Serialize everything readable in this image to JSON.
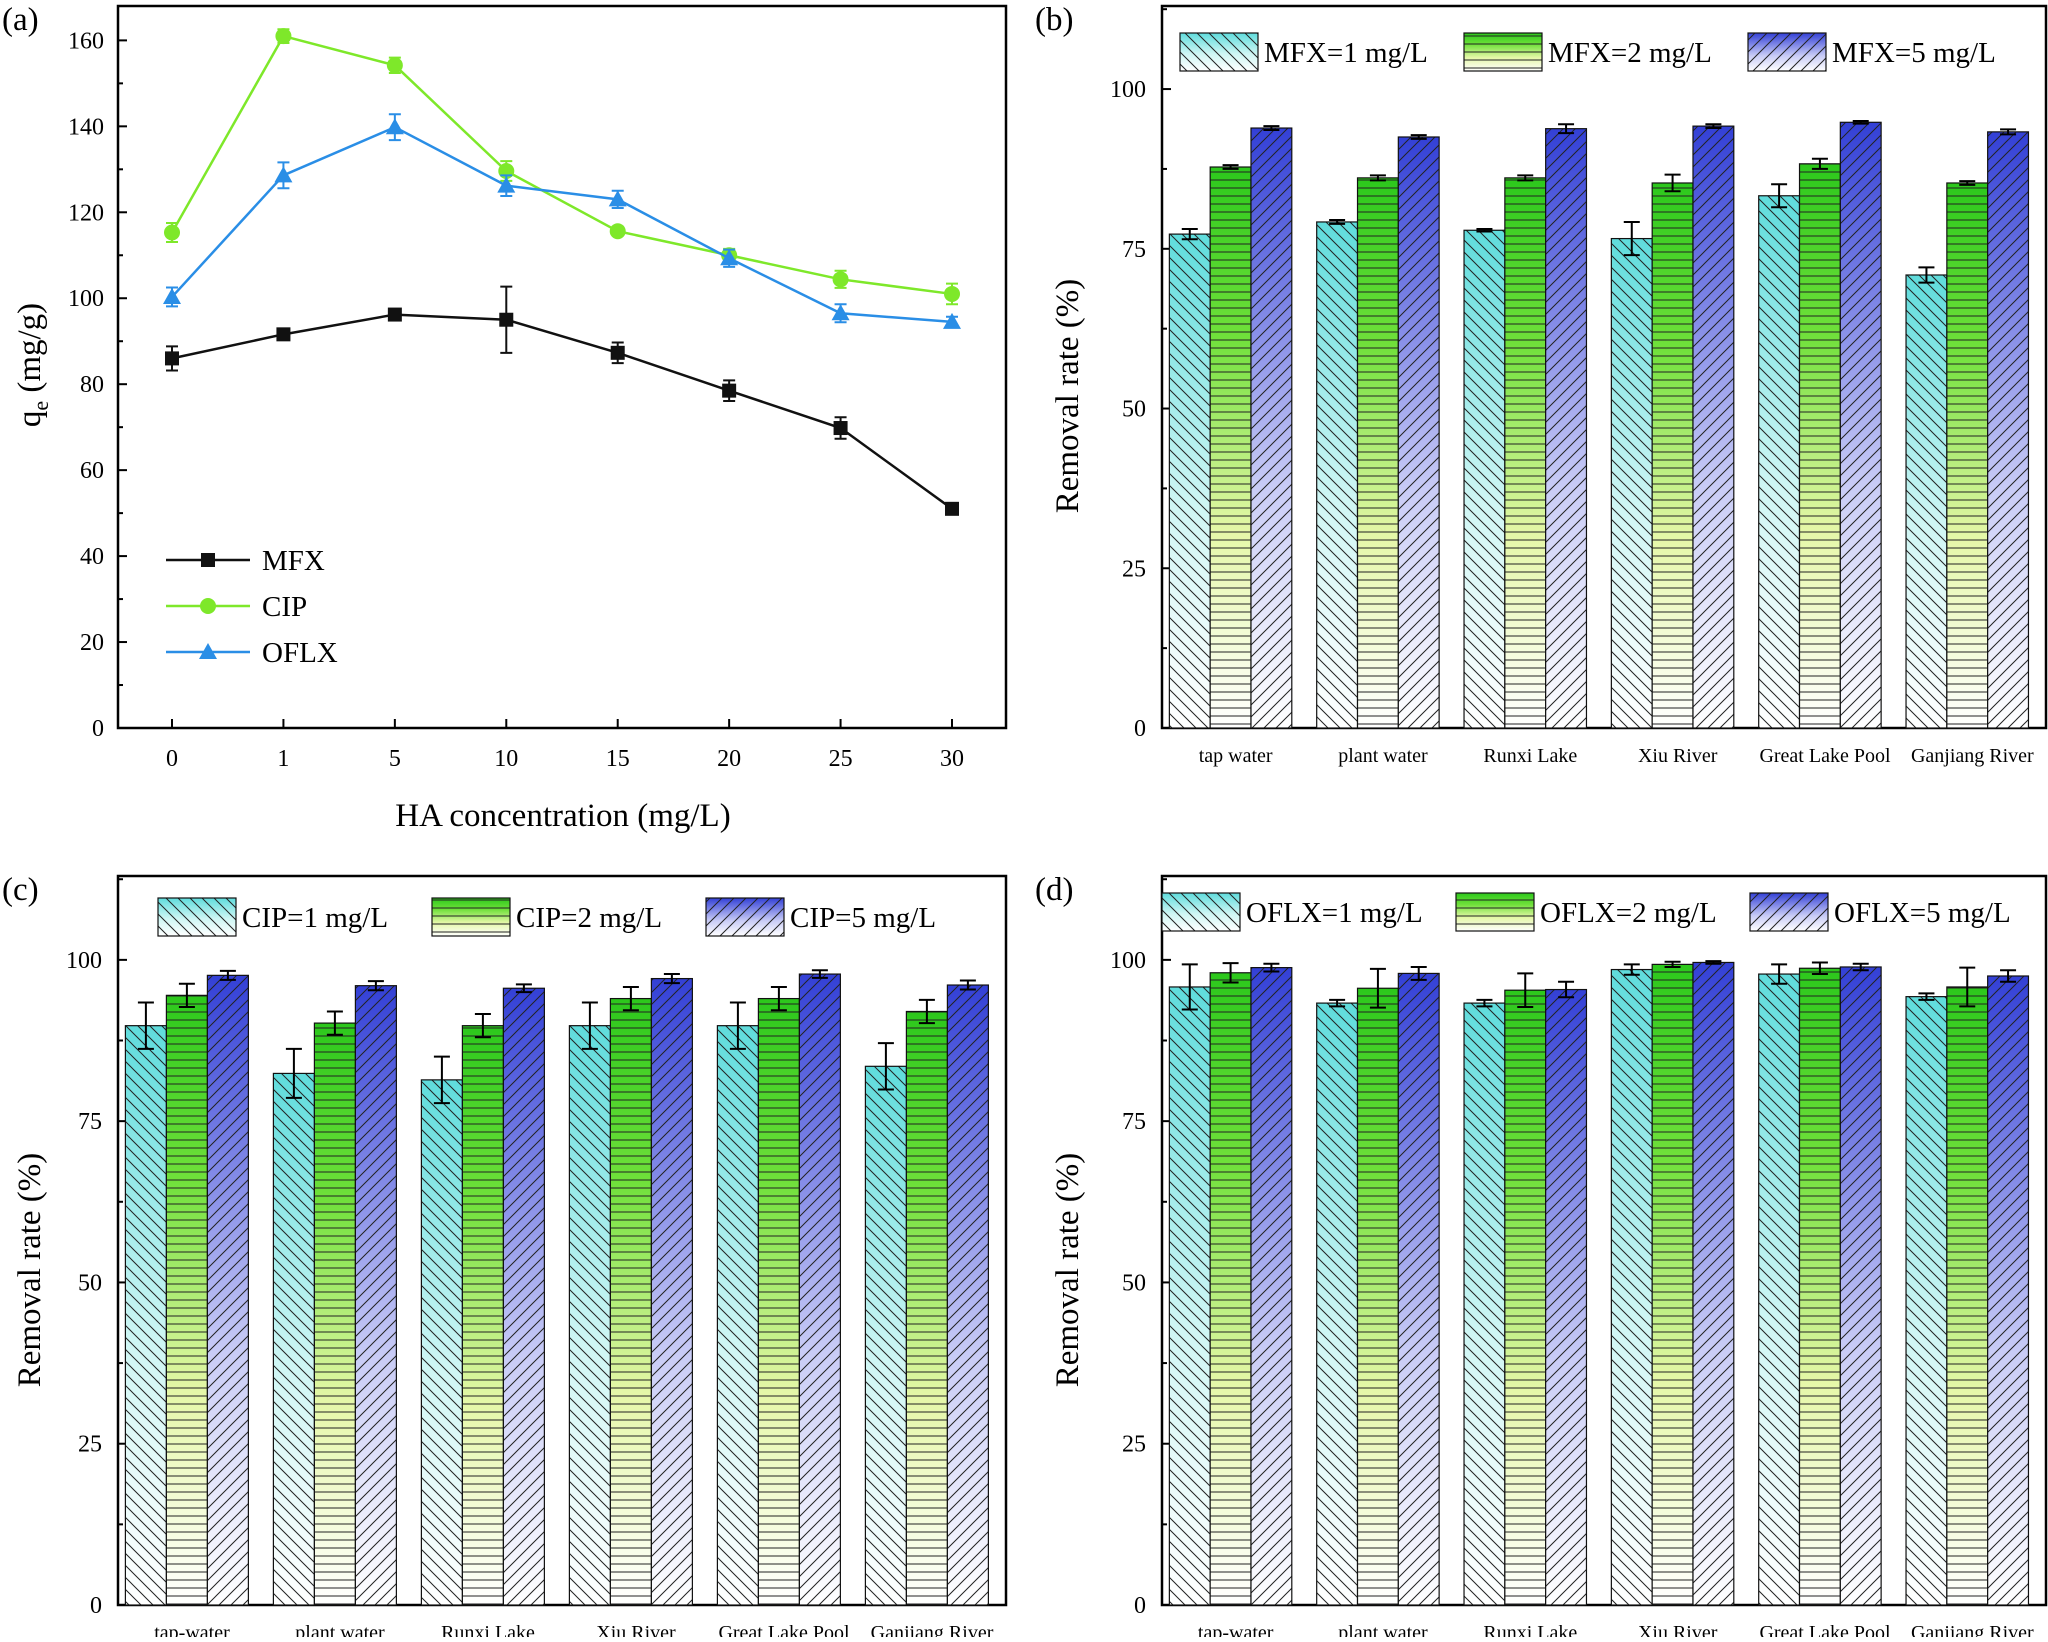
{
  "figure_colors": {
    "mfx_line": "#111111",
    "cip_line": "#7ee82a",
    "oflx_line": "#2a8ee6",
    "bar_low": "#7fe6e6",
    "bar_mid": "#3bd21c",
    "bar_high": "#3d46d8"
  },
  "chart_data": [
    {
      "id": "a",
      "panel_label": "(a)",
      "type": "line",
      "xlabel": "HA concentration (mg/L)",
      "ylabel_main": "q",
      "ylabel_sub": "e",
      "ylabel_unit": " (mg/g)",
      "categories": [
        "0",
        "1",
        "5",
        "10",
        "15",
        "20",
        "25",
        "30"
      ],
      "ylim": [
        0,
        168
      ],
      "yticks": [
        0,
        20,
        40,
        60,
        80,
        100,
        120,
        140,
        160
      ],
      "legend_position": "bottom-left",
      "series": [
        {
          "name": "MFX",
          "marker": "square",
          "color": "#111111",
          "values": [
            86,
            91.6,
            96.2,
            95,
            87.3,
            78.5,
            69.8,
            51
          ],
          "errors": [
            2.8,
            1.3,
            1.3,
            7.7,
            2.4,
            2.4,
            2.5,
            1.1
          ]
        },
        {
          "name": "CIP",
          "marker": "circle",
          "color": "#7ee82a",
          "values": [
            115.3,
            161,
            154.2,
            129.6,
            115.6,
            110,
            104.4,
            101
          ],
          "errors": [
            2.2,
            1.6,
            1.8,
            2.3,
            1.0,
            1.5,
            2.0,
            2.4
          ]
        },
        {
          "name": "OFLX",
          "marker": "triangle",
          "color": "#2a8ee6",
          "values": [
            100.3,
            128.6,
            139.8,
            126.2,
            123,
            109.3,
            96.5,
            94.5
          ],
          "errors": [
            2.2,
            3.0,
            3.0,
            2.4,
            2.0,
            2.0,
            2.1,
            1.2
          ]
        }
      ]
    },
    {
      "id": "b",
      "panel_label": "(b)",
      "type": "bar",
      "ylabel": "Removal rate (%)",
      "ylim": [
        0,
        113
      ],
      "yticks": [
        0,
        25,
        50,
        75,
        100
      ],
      "categories": [
        "tap water",
        "plant water",
        "Runxi Lake",
        "Xiu River",
        "Great Lake Pool",
        "Ganjiang River"
      ],
      "legend_position": "top",
      "series": [
        {
          "name": "MFX=1 mg/L",
          "values": [
            77.3,
            79.2,
            77.9,
            76.6,
            83.3,
            70.9
          ],
          "errors": [
            0.8,
            0.3,
            0.2,
            2.6,
            1.8,
            1.2
          ]
        },
        {
          "name": "MFX=2 mg/L",
          "values": [
            87.8,
            86.1,
            86.1,
            85.3,
            88.3,
            85.3
          ],
          "errors": [
            0.3,
            0.4,
            0.4,
            1.3,
            0.8,
            0.3
          ]
        },
        {
          "name": "MFX=5 mg/L",
          "values": [
            93.9,
            92.5,
            93.8,
            94.2,
            94.8,
            93.3
          ],
          "errors": [
            0.3,
            0.3,
            0.7,
            0.3,
            0.2,
            0.4
          ]
        }
      ]
    },
    {
      "id": "c",
      "panel_label": "(c)",
      "type": "bar",
      "ylabel": "Removal rate (%)",
      "ylim": [
        0,
        113
      ],
      "yticks": [
        0,
        25,
        50,
        75,
        100
      ],
      "categories": [
        "tap-water",
        "plant water",
        "Runxi Lake",
        "Xiu River",
        "Great Lake Pool",
        "Ganjiang River"
      ],
      "legend_position": "top",
      "series": [
        {
          "name": "CIP=1 mg/L",
          "values": [
            89.8,
            82.4,
            81.4,
            89.8,
            89.8,
            83.5
          ],
          "errors": [
            3.6,
            3.8,
            3.6,
            3.6,
            3.6,
            3.6
          ]
        },
        {
          "name": "CIP=2 mg/L",
          "values": [
            94.5,
            90.2,
            89.8,
            94,
            94,
            92
          ],
          "errors": [
            1.8,
            1.8,
            1.8,
            1.8,
            1.8,
            1.8
          ]
        },
        {
          "name": "CIP=5 mg/L",
          "values": [
            97.6,
            96,
            95.6,
            97.1,
            97.8,
            96.1
          ],
          "errors": [
            0.7,
            0.7,
            0.6,
            0.7,
            0.6,
            0.7
          ]
        }
      ]
    },
    {
      "id": "d",
      "panel_label": "(d)",
      "type": "bar",
      "ylabel": "Removal rate (%)",
      "ylim": [
        0,
        113
      ],
      "yticks": [
        0,
        25,
        50,
        75,
        100
      ],
      "categories": [
        "tap-water",
        "plant water",
        "Runxi Lake",
        "Xiu River",
        "Great Lake Pool",
        "Ganjiang River"
      ],
      "legend_position": "top",
      "series": [
        {
          "name": "OFLX=1 mg/L",
          "values": [
            95.8,
            93.3,
            93.3,
            98.5,
            97.8,
            94.3
          ],
          "errors": [
            3.5,
            0.5,
            0.5,
            0.8,
            1.5,
            0.5
          ]
        },
        {
          "name": "OFLX=2 mg/L",
          "values": [
            98,
            95.6,
            95.3,
            99.3,
            98.7,
            95.8
          ],
          "errors": [
            1.5,
            3.0,
            2.6,
            0.4,
            0.9,
            3.0
          ]
        },
        {
          "name": "OFLX=5 mg/L",
          "values": [
            98.8,
            97.9,
            95.4,
            99.6,
            98.9,
            97.5
          ],
          "errors": [
            0.6,
            1.0,
            1.2,
            0.2,
            0.5,
            0.9
          ]
        }
      ]
    }
  ]
}
